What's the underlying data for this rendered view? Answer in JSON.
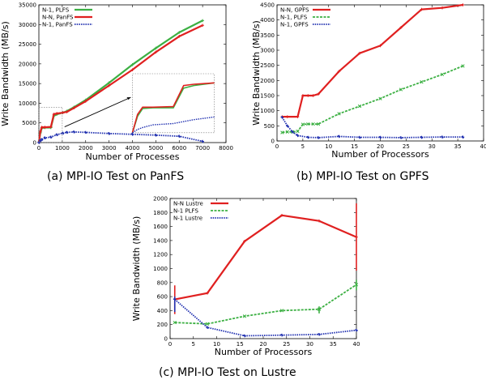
{
  "chart_data": [
    {
      "type": "line",
      "caption": "(a) MPI-IO Test on PanFS",
      "xlabel": "Number of Processes",
      "ylabel": "Write Bandwidth (MB/s)",
      "xlim": [
        0,
        8000
      ],
      "ylim": [
        0,
        35000
      ],
      "xticks": [
        "0",
        "1000",
        "2000",
        "3000",
        "4000",
        "5000",
        "6000",
        "7000",
        "8000"
      ],
      "yticks": [
        "0",
        "5000",
        "10000",
        "15000",
        "20000",
        "25000",
        "30000",
        "35000"
      ],
      "legend_position": "top-left",
      "inset": "zoomed view of 0-1000 processes",
      "series": [
        {
          "name": "N-1, PLFS",
          "color": "#3cb043",
          "style": "solid",
          "x": [
            0,
            64,
            128,
            256,
            512,
            640,
            768,
            1024,
            1200,
            1500,
            2000,
            3000,
            4000,
            5000,
            6000,
            7000
          ],
          "y": [
            0,
            2500,
            3700,
            3800,
            3800,
            6800,
            7200,
            7600,
            8000,
            9000,
            10800,
            15200,
            19800,
            24000,
            28000,
            31000
          ]
        },
        {
          "name": "N-N, PanFS",
          "color": "#e02020",
          "style": "solid",
          "x": [
            0,
            64,
            128,
            256,
            512,
            640,
            768,
            1024,
            1200,
            1500,
            2000,
            3000,
            4000,
            5000,
            6000,
            7000
          ],
          "y": [
            0,
            2800,
            3900,
            3900,
            4000,
            7200,
            7400,
            7600,
            7800,
            8800,
            10500,
            14500,
            18500,
            23000,
            27000,
            29800
          ]
        },
        {
          "name": "N-1, PanFS",
          "color": "#2030b0",
          "style": "dotted",
          "x": [
            0,
            64,
            128,
            256,
            512,
            768,
            1024,
            1200,
            1500,
            2000,
            3000,
            4000,
            5000,
            6000,
            7000
          ],
          "y": [
            0,
            500,
            800,
            1200,
            1400,
            2000,
            2400,
            2600,
            2700,
            2600,
            2300,
            2100,
            1900,
            1600,
            300
          ]
        }
      ]
    },
    {
      "type": "line",
      "caption": "(b) MPI-IO Test on GPFS",
      "xlabel": "Number of Processors",
      "ylabel": "Write Bandwidth (MB/s)",
      "xlim": [
        0,
        40
      ],
      "ylim": [
        0,
        4500
      ],
      "xticks": [
        "0",
        "5",
        "10",
        "15",
        "20",
        "25",
        "30",
        "35",
        "40"
      ],
      "yticks": [
        "0",
        "500",
        "1000",
        "1500",
        "2000",
        "2500",
        "3000",
        "3500",
        "4000",
        "4500"
      ],
      "legend_position": "top-left",
      "series": [
        {
          "name": "N-N, GPFS",
          "color": "#e02020",
          "style": "solid",
          "x": [
            1,
            2,
            4,
            5,
            6,
            7,
            8,
            12,
            16,
            20,
            24,
            28,
            32,
            36
          ],
          "y": [
            800,
            800,
            800,
            1500,
            1500,
            1500,
            1550,
            2300,
            2900,
            3150,
            3750,
            4350,
            4400,
            4500
          ]
        },
        {
          "name": "N-1, PLFS",
          "color": "#3cb043",
          "style": "dashed",
          "x": [
            1,
            2,
            3,
            4,
            5,
            6,
            7,
            8,
            12,
            16,
            20,
            24,
            28,
            32,
            36
          ],
          "y": [
            280,
            300,
            300,
            320,
            550,
            560,
            560,
            560,
            900,
            1150,
            1400,
            1700,
            1950,
            2200,
            2480
          ]
        },
        {
          "name": "N-1, GPFS",
          "color": "#2030b0",
          "style": "dotted",
          "x": [
            1,
            2,
            3,
            4,
            6,
            8,
            12,
            16,
            20,
            24,
            28,
            32,
            36
          ],
          "y": [
            780,
            500,
            300,
            180,
            120,
            110,
            150,
            120,
            120,
            110,
            120,
            130,
            130
          ]
        }
      ]
    },
    {
      "type": "line",
      "caption": "(c) MPI-IO Test on Lustre",
      "xlabel": "Number of Processors",
      "ylabel": "Write Bandwidth (MB/s)",
      "xlim": [
        0,
        40
      ],
      "ylim": [
        0,
        2000
      ],
      "xticks": [
        "0",
        "5",
        "10",
        "15",
        "20",
        "25",
        "30",
        "35",
        "40"
      ],
      "yticks": [
        "0",
        "200",
        "400",
        "600",
        "800",
        "1000",
        "1200",
        "1400",
        "1600",
        "1800",
        "2000"
      ],
      "legend_position": "top-left",
      "series": [
        {
          "name": "N-N Lustre",
          "color": "#e02020",
          "style": "solid",
          "x": [
            1,
            8,
            16,
            24,
            32,
            40
          ],
          "y": [
            560,
            650,
            1390,
            1760,
            1680,
            1450
          ]
        },
        {
          "name": "N-1 PLFS",
          "color": "#3cb043",
          "style": "dashed",
          "x": [
            1,
            8,
            16,
            24,
            32,
            40
          ],
          "y": [
            230,
            210,
            320,
            400,
            420,
            770
          ]
        },
        {
          "name": "N-1 Lustre",
          "color": "#2030b0",
          "style": "dotted",
          "x": [
            1,
            8,
            16,
            24,
            32,
            40
          ],
          "y": [
            560,
            160,
            40,
            50,
            60,
            120
          ]
        }
      ]
    }
  ]
}
